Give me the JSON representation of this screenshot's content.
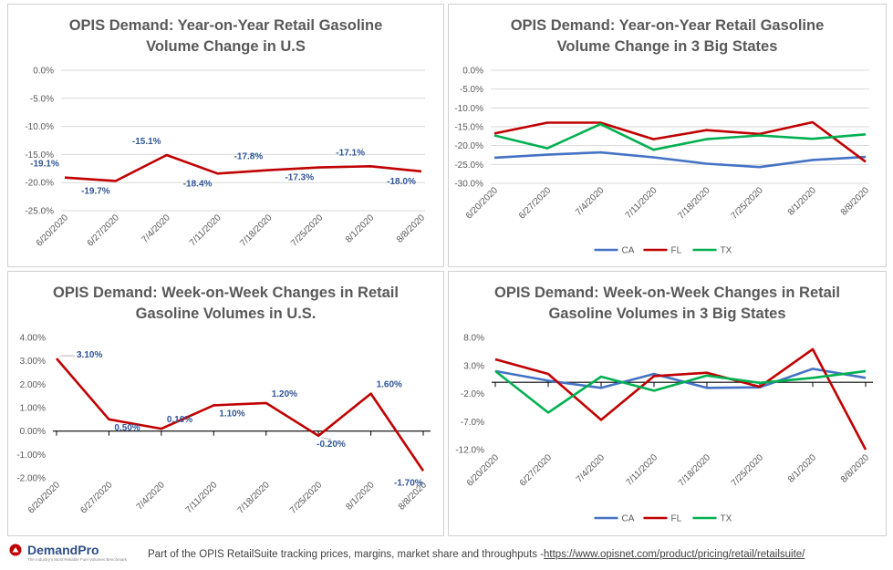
{
  "colors": {
    "CA": "#4472C4",
    "FL": "#C00000",
    "TX": "#00B050",
    "single": "#C00000",
    "label": "#2F5597",
    "grid": "#D9D9D9",
    "tick": "#595959"
  },
  "footer": {
    "logo_name": "DemandPro",
    "logo_tagline": "The Industry's Most Reliable Fuel Volumes Benchmark",
    "text": "Part of the OPIS RetailSuite tracking prices, margins, market share and throughputs -",
    "link": "https://www.opisnet.com/product/pricing/retail/retailsuite/"
  },
  "chart_data": [
    {
      "type": "line",
      "title": "OPIS Demand: Year-on-Year Retail Gasoline Volume Change in U.S",
      "title_lines": [
        "OPIS Demand: Year-on-Year Retail Gasoline",
        "Volume Change in U.S"
      ],
      "categories": [
        "6/20/2020",
        "6/27/2020",
        "7/4/2020",
        "7/11/2020",
        "7/18/2020",
        "7/25/2020",
        "8/1/2020",
        "8/8/2020"
      ],
      "series": [
        {
          "values": [
            -19.1,
            -19.7,
            -15.1,
            -18.4,
            -17.8,
            -17.3,
            -17.1,
            -18.0
          ]
        }
      ],
      "data_labels": [
        "-19.1%",
        "-19.7%",
        "-15.1%",
        "-18.4%",
        "-17.8%",
        "-17.3%",
        "-17.1%",
        "-18.0%"
      ],
      "label_positions": [
        "above",
        "below",
        "above",
        "below",
        "above",
        "below",
        "above",
        "below"
      ],
      "ylim": [
        -25,
        0
      ],
      "yticks": [
        0,
        -5,
        -10,
        -15,
        -20,
        -25
      ],
      "ytick_labels": [
        "0.0%",
        "-5.0%",
        "-10.0%",
        "-15.0%",
        "-20.0%",
        "-25.0%"
      ],
      "grid": true,
      "legend": "none"
    },
    {
      "type": "line",
      "title": "OPIS Demand: Year-on-Year Retail Gasoline Volume Change in 3 Big States",
      "title_lines": [
        "OPIS Demand: Year-on-Year Retail Gasoline",
        "Volume Change in 3 Big States"
      ],
      "categories": [
        "6/20/2020",
        "6/27/2020",
        "7/4/2020",
        "7/11/2020",
        "7/18/2020",
        "7/25/2020",
        "8/1/2020",
        "8/8/2020"
      ],
      "series": [
        {
          "name": "CA",
          "values": [
            -23.2,
            -22.4,
            -21.8,
            -23.1,
            -24.8,
            -25.7,
            -23.8,
            -23.0
          ]
        },
        {
          "name": "FL",
          "values": [
            -16.8,
            -13.9,
            -13.9,
            -18.3,
            -15.9,
            -16.9,
            -13.8,
            -24.3
          ]
        },
        {
          "name": "TX",
          "values": [
            -17.3,
            -20.7,
            -14.3,
            -21.1,
            -18.3,
            -17.3,
            -18.2,
            -17.0
          ]
        }
      ],
      "ylim": [
        -30,
        0
      ],
      "yticks": [
        0,
        -5,
        -10,
        -15,
        -20,
        -25,
        -30
      ],
      "ytick_labels": [
        "0.0%",
        "-5.0%",
        "-10.0%",
        "-15.0%",
        "-20.0%",
        "-25.0%",
        "-30.0%"
      ],
      "grid": true,
      "legend": "bottom"
    },
    {
      "type": "line",
      "title": "OPIS Demand: Week-on-Week Changes in Retail Gasoline Volumes in U.S.",
      "title_lines": [
        "OPIS Demand: Week-on-Week Changes in Retail",
        "Gasoline Volumes in U.S."
      ],
      "categories": [
        "6/20/2020",
        "6/27/2020",
        "7/4/2020",
        "7/11/2020",
        "7/18/2020",
        "7/25/2020",
        "8/1/2020",
        "8/8/2020"
      ],
      "series": [
        {
          "values": [
            3.1,
            0.5,
            0.1,
            1.1,
            1.2,
            -0.2,
            1.6,
            -1.7
          ]
        }
      ],
      "data_labels": [
        "3.10%",
        "0.50%",
        "0.10%",
        "1.10%",
        "1.20%",
        "-0.20%",
        "1.60%",
        "-1.70%"
      ],
      "ylim": [
        -2,
        4
      ],
      "yticks": [
        4,
        3,
        2,
        1,
        0,
        -1,
        -2
      ],
      "ytick_labels": [
        "4.00%",
        "3.00%",
        "2.00%",
        "1.00%",
        "0.00%",
        "-1.00%",
        "-2.00%"
      ],
      "grid": false,
      "legend": "none"
    },
    {
      "type": "line",
      "title": "OPIS Demand: Week-on-Week Changes in Retail Gasoline Volumes in 3 Big States",
      "title_lines": [
        "OPIS Demand: Week-on-Week Changes in Retail",
        "Gasoline Volumes in 3 Big States"
      ],
      "categories": [
        "6/20/2020",
        "6/27/2020",
        "7/4/2020",
        "7/11/2020",
        "7/18/2020",
        "7/25/2020",
        "8/1/2020",
        "8/8/2020"
      ],
      "series": [
        {
          "name": "CA",
          "values": [
            2.0,
            0.3,
            -1.0,
            1.5,
            -1.0,
            -0.9,
            2.4,
            0.8
          ]
        },
        {
          "name": "FL",
          "values": [
            4.1,
            1.5,
            -6.7,
            1.1,
            1.7,
            -0.8,
            5.9,
            -12.0
          ]
        },
        {
          "name": "TX",
          "values": [
            2.0,
            -5.4,
            1.0,
            -1.5,
            1.2,
            -0.1,
            0.8,
            2.0
          ]
        }
      ],
      "ylim": [
        -12,
        8
      ],
      "yticks": [
        8,
        3,
        -2,
        -7,
        -12
      ],
      "ytick_labels": [
        "8.0%",
        "3.0%",
        "-2.0%",
        "-7.0%",
        "-12.0%"
      ],
      "grid": false,
      "legend": "bottom"
    }
  ]
}
